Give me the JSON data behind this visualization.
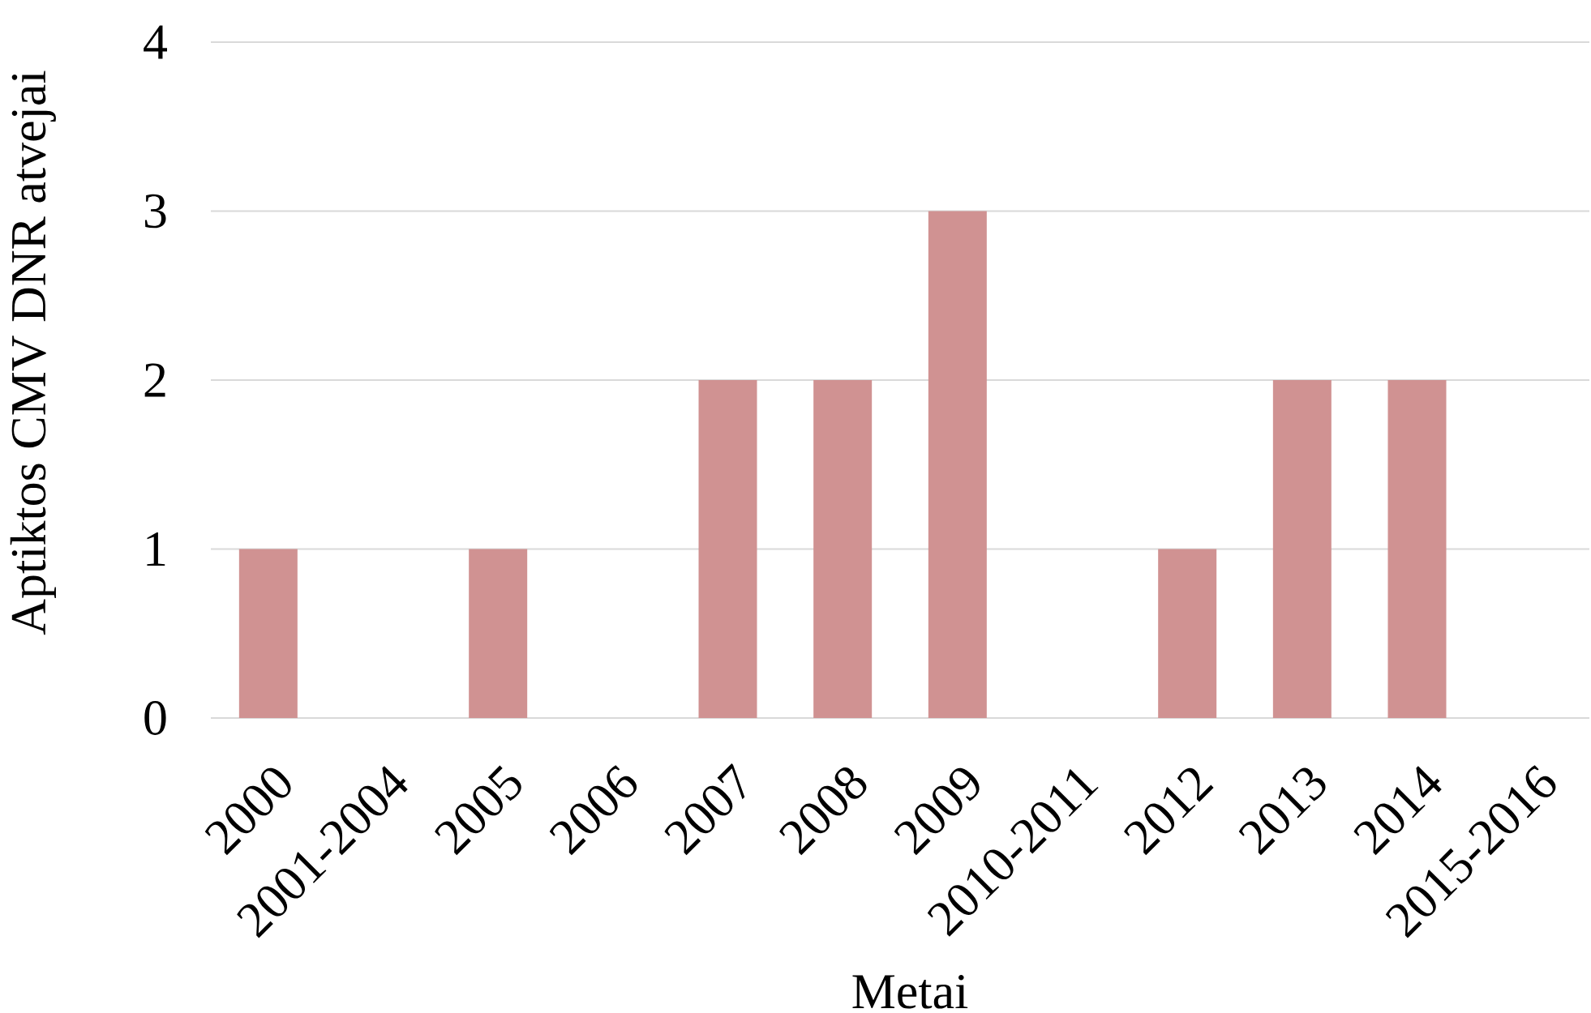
{
  "chart_data": {
    "type": "bar",
    "xlabel": "Metai",
    "ylabel": "Aptiktos CMV DNR atvejai",
    "categories": [
      "2000",
      "2001-2004",
      "2005",
      "2006",
      "2007",
      "2008",
      "2009",
      "2010-2011",
      "2012",
      "2013",
      "2014",
      "2015-2016"
    ],
    "values": [
      1,
      0,
      1,
      0,
      2,
      2,
      3,
      0,
      1,
      2,
      2,
      0
    ],
    "color": "#d09292",
    "ylim": [
      0,
      4
    ],
    "yticks": [
      0,
      1,
      2,
      3,
      4
    ],
    "grid": "y"
  }
}
